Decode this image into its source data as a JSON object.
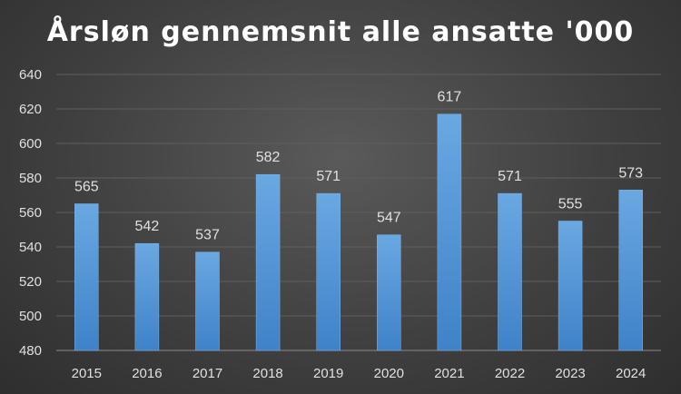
{
  "chart_data": {
    "type": "bar",
    "title": "Årsløn gennemsnit alle ansatte '000",
    "xlabel": "",
    "ylabel": "",
    "categories": [
      "2015",
      "2016",
      "2017",
      "2018",
      "2019",
      "2020",
      "2021",
      "2022",
      "2023",
      "2024"
    ],
    "values": [
      565,
      542,
      537,
      582,
      571,
      547,
      617,
      571,
      555,
      573
    ],
    "ylim": [
      480,
      640
    ],
    "yticks": [
      480,
      500,
      520,
      540,
      560,
      580,
      600,
      620,
      640
    ],
    "grid": true,
    "legend": "none",
    "data_labels": true,
    "bar_color": "#5b9bd5"
  }
}
